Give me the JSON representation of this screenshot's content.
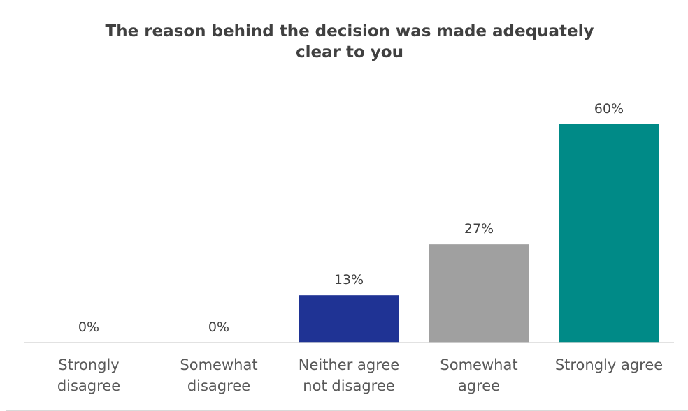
{
  "chart_data": {
    "type": "bar",
    "title": "The reason behind the decision was made adequately clear to you",
    "title_lines": [
      "The reason behind the decision was made adequately",
      "clear to you"
    ],
    "categories": [
      [
        "Strongly",
        "disagree"
      ],
      [
        "Somewhat",
        "disagree"
      ],
      [
        "Neither agree",
        "not disagree"
      ],
      [
        "Somewhat",
        "agree"
      ],
      [
        "Strongly agree"
      ]
    ],
    "values": [
      0,
      0,
      13,
      27,
      60
    ],
    "value_labels": [
      "0%",
      "0%",
      "13%",
      "27%",
      "60%"
    ],
    "colors": [
      "#1f3394",
      "#1f3394",
      "#1f3394",
      "#a0a0a0",
      "#008a87"
    ],
    "ylim": [
      0,
      60
    ],
    "unit": "%",
    "grid": false,
    "legend": "none"
  },
  "colors": {
    "title": "#404040",
    "axis": "#d9d9d9",
    "label": "#595959",
    "value_label": "#404040"
  }
}
